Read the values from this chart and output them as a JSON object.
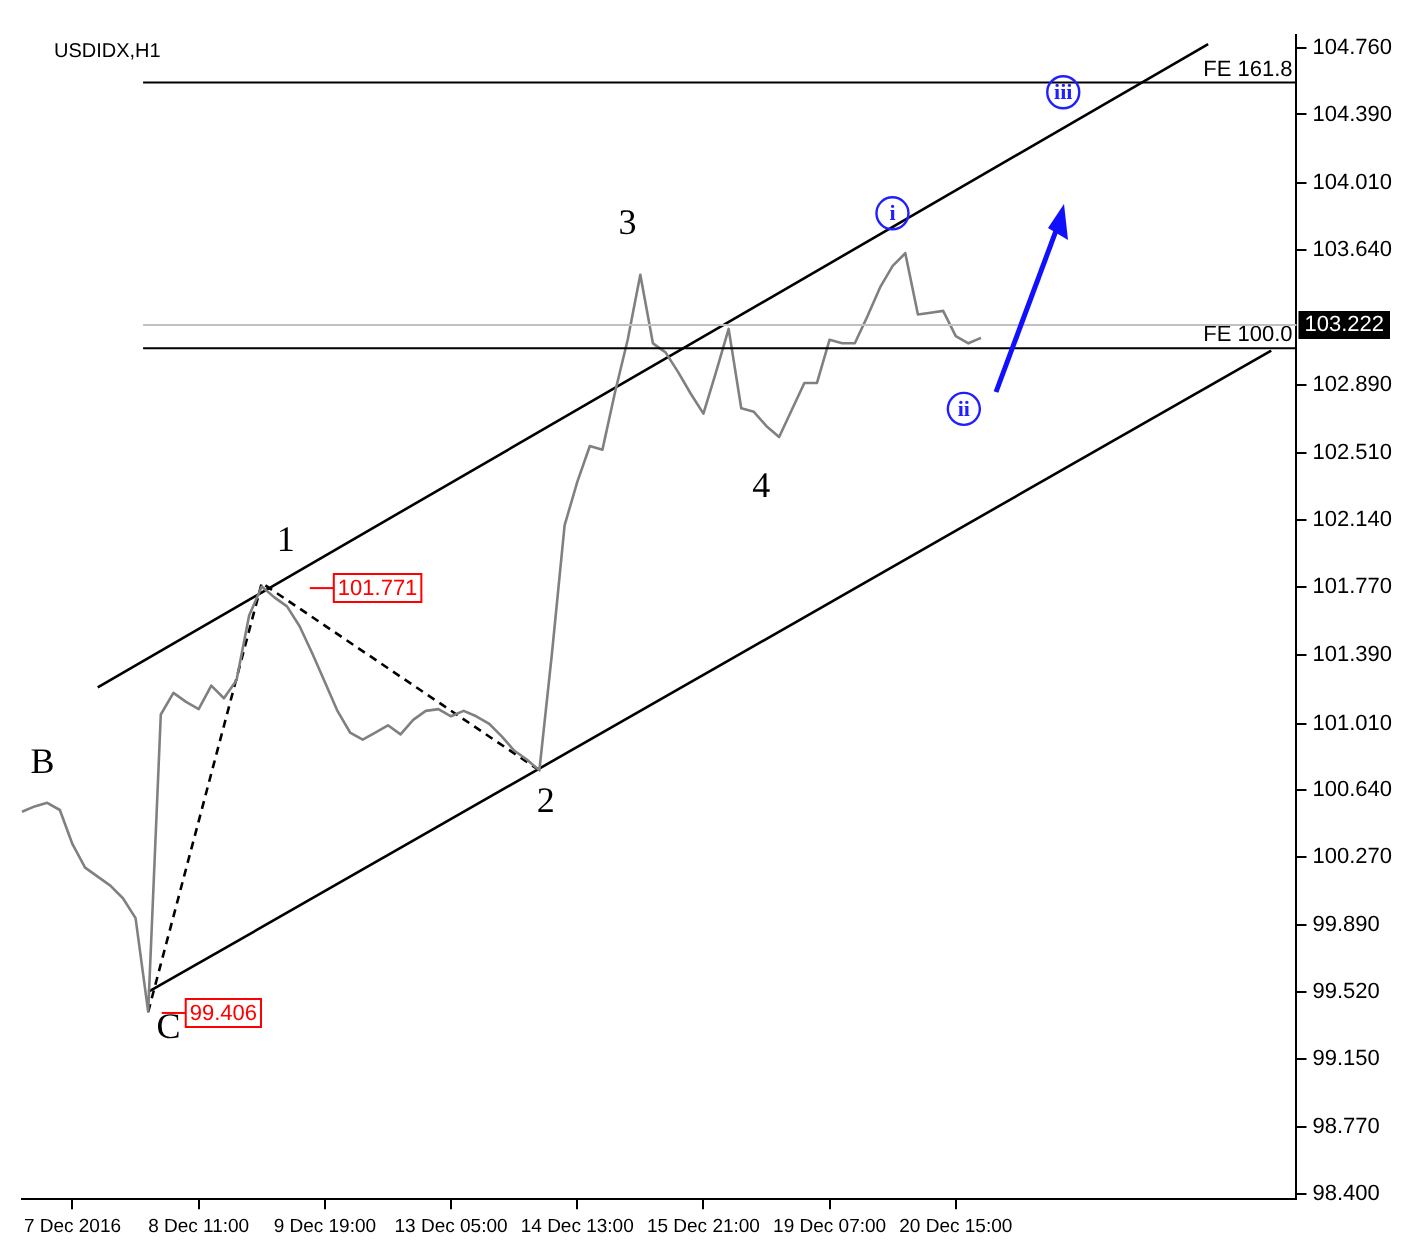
{
  "chart_data": {
    "type": "line",
    "title": "USDIDX,H1",
    "marker": "none",
    "grid": false,
    "legend": false,
    "categories": [
      null,
      null,
      null,
      null,
      "7 Dec 2016",
      null,
      null,
      null,
      null,
      null,
      null,
      null,
      null,
      null,
      "8 Dec 11:00",
      null,
      null,
      null,
      null,
      null,
      null,
      null,
      null,
      null,
      "9 Dec 19:00",
      null,
      null,
      null,
      null,
      null,
      null,
      null,
      null,
      null,
      "13 Dec 05:00",
      null,
      null,
      null,
      null,
      null,
      null,
      null,
      null,
      null,
      "14 Dec 13:00",
      null,
      null,
      null,
      null,
      null,
      null,
      null,
      null,
      null,
      "15 Dec 21:00",
      null,
      null,
      null,
      null,
      null,
      null,
      null,
      null,
      null,
      "19 Dec 07:00",
      null,
      null,
      null,
      null,
      null,
      null,
      null,
      null,
      null,
      "20 Dec 15:00",
      null,
      null,
      null,
      null,
      null,
      null,
      null,
      null,
      null,
      null,
      null,
      null,
      null,
      null,
      null,
      null,
      null,
      null,
      null,
      null,
      null,
      null,
      null,
      null,
      null,
      null,
      null
    ],
    "ylim": [
      98.37,
      104.83
    ],
    "yticks": [
      {
        "value": 98.4,
        "label": "98.400"
      },
      {
        "value": 98.77,
        "label": "98.770"
      },
      {
        "value": 99.15,
        "label": "99.150"
      },
      {
        "value": 99.52,
        "label": "99.520"
      },
      {
        "value": 99.89,
        "label": "99.890"
      },
      {
        "value": 100.27,
        "label": "100.270"
      },
      {
        "value": 100.64,
        "label": "100.640"
      },
      {
        "value": 101.01,
        "label": "101.010"
      },
      {
        "value": 101.39,
        "label": "101.390"
      },
      {
        "value": 101.77,
        "label": "101.770"
      },
      {
        "value": 102.14,
        "label": "102.140"
      },
      {
        "value": 102.51,
        "label": "102.510"
      },
      {
        "value": 102.89,
        "label": "102.890"
      },
      {
        "value": 103.64,
        "label": "103.640"
      },
      {
        "value": 104.01,
        "label": "104.010"
      },
      {
        "value": 104.39,
        "label": "104.390"
      },
      {
        "value": 104.76,
        "label": "104.760"
      }
    ],
    "series": [
      {
        "color": "#808080",
        "values": [
          100.52,
          100.55,
          100.57,
          100.53,
          100.34,
          100.21,
          100.16,
          100.11,
          100.04,
          99.93,
          99.41,
          101.06,
          101.18,
          101.13,
          101.09,
          101.22,
          101.15,
          101.25,
          101.61,
          101.77,
          101.71,
          101.66,
          101.55,
          101.4,
          101.24,
          101.08,
          100.96,
          100.92,
          100.96,
          101.0,
          100.95,
          101.03,
          101.08,
          101.09,
          101.05,
          101.08,
          101.05,
          101.01,
          100.94,
          100.86,
          100.81,
          100.75,
          101.4,
          102.11,
          102.35,
          102.55,
          102.53,
          102.85,
          103.14,
          103.5,
          103.12,
          103.07,
          102.96,
          102.84,
          102.73,
          102.96,
          103.2,
          102.76,
          102.74,
          102.66,
          102.6,
          102.75,
          102.9,
          102.9,
          103.14,
          103.12,
          103.12,
          103.27,
          103.43,
          103.55,
          103.62,
          103.28,
          103.29,
          103.3,
          103.16,
          103.12,
          103.15,
          null,
          null,
          null,
          null,
          null,
          null,
          null,
          null,
          null,
          null,
          null,
          null,
          null,
          null,
          null,
          null,
          null,
          null,
          null,
          null,
          null,
          null,
          null,
          null,
          null
        ]
      },
      {
        "type": "line",
        "color": "#000000",
        "values": [
          null,
          null,
          null,
          null,
          null,
          null,
          101.21,
          null,
          null,
          null,
          null,
          null,
          null,
          null,
          null,
          null,
          null,
          null,
          null,
          null,
          null,
          null,
          null,
          null,
          null,
          null,
          null,
          null,
          null,
          null,
          null,
          null,
          null,
          null,
          null,
          null,
          null,
          null,
          null,
          null,
          null,
          null,
          null,
          null,
          null,
          null,
          null,
          null,
          null,
          null,
          null,
          null,
          null,
          null,
          null,
          null,
          null,
          null,
          null,
          null,
          null,
          null,
          null,
          null,
          null,
          null,
          null,
          null,
          null,
          null,
          null,
          null,
          null,
          null,
          null,
          null,
          null,
          null,
          null,
          null,
          null,
          null,
          null,
          null,
          null,
          null,
          null,
          null,
          null,
          null,
          null,
          null,
          null,
          null,
          104.78,
          null,
          null,
          null,
          null,
          null,
          null,
          null
        ]
      },
      {
        "type": "line",
        "color": "#000000",
        "values": [
          null,
          null,
          null,
          null,
          null,
          null,
          null,
          null,
          null,
          null,
          99.52,
          null,
          null,
          null,
          null,
          null,
          null,
          null,
          null,
          null,
          null,
          null,
          null,
          null,
          null,
          null,
          null,
          null,
          null,
          null,
          null,
          null,
          null,
          null,
          null,
          null,
          null,
          null,
          null,
          null,
          null,
          null,
          null,
          null,
          null,
          null,
          null,
          null,
          null,
          null,
          null,
          null,
          null,
          null,
          null,
          null,
          null,
          null,
          null,
          null,
          null,
          null,
          null,
          null,
          null,
          null,
          null,
          null,
          null,
          null,
          null,
          null,
          null,
          null,
          null,
          null,
          null,
          null,
          null,
          null,
          null,
          null,
          null,
          null,
          null,
          null,
          null,
          null,
          null,
          null,
          null,
          null,
          null,
          null,
          null,
          null,
          null,
          null,
          null,
          103.08,
          null,
          null
        ]
      },
      {
        "type": "line",
        "color": "#000000",
        "line_style": "dashed",
        "values": [
          null,
          null,
          null,
          null,
          null,
          null,
          null,
          null,
          null,
          null,
          99.41,
          null,
          null,
          null,
          null,
          null,
          null,
          null,
          null,
          101.79,
          null,
          null,
          null,
          null,
          null,
          null,
          null,
          null,
          null,
          null,
          null,
          null,
          null,
          null,
          null,
          null,
          null,
          null,
          null,
          null,
          null,
          100.75,
          null,
          null,
          null,
          null,
          null,
          null,
          null,
          null,
          null,
          null,
          null,
          null,
          null,
          null,
          null,
          null,
          null,
          null,
          null,
          null,
          null,
          null,
          null,
          null,
          null,
          null,
          null,
          null,
          null,
          null,
          null,
          null,
          null,
          null,
          null,
          null,
          null,
          null,
          null,
          null,
          null,
          null,
          null,
          null,
          null,
          null,
          null,
          null,
          null,
          null,
          null,
          null,
          null,
          null,
          null,
          null,
          null,
          null,
          null,
          null
        ]
      }
    ],
    "ref_lines": [
      {
        "axis": "y",
        "value": 104.567,
        "label": "FE 161.8",
        "color": "#000000"
      },
      {
        "axis": "y",
        "value": 103.093,
        "label": "FE 100.0",
        "color": "#000000"
      },
      {
        "axis": "y",
        "value": 103.222,
        "label": "103.222",
        "color": "#c0c0c0"
      }
    ],
    "annotations": [
      "B",
      "C",
      "1",
      {
        "text": "2",
        "y": 100.75
      },
      "3",
      "4",
      "i",
      "ii",
      "iii",
      "101.771",
      "99.406"
    ]
  }
}
